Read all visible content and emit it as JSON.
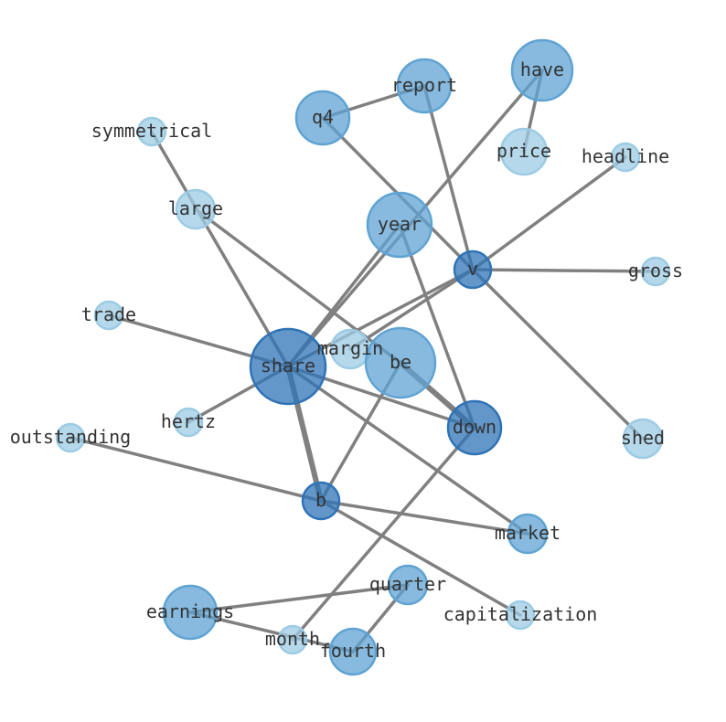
{
  "chart_data": {
    "type": "network",
    "edge_color": "#808080",
    "node_colors": {
      "dark": "#2f73b7",
      "mid": "#5fa3d3",
      "light": "#9ccbe4"
    },
    "nodes": [
      {
        "id": "have",
        "label": "have",
        "shade": "mid",
        "size": 33
      },
      {
        "id": "report",
        "label": "report",
        "shade": "mid",
        "size": 29
      },
      {
        "id": "q4",
        "label": "q4",
        "shade": "mid",
        "size": 29
      },
      {
        "id": "price",
        "label": "price",
        "shade": "light",
        "size": 25
      },
      {
        "id": "headline",
        "label": "headline",
        "shade": "light",
        "size": 15
      },
      {
        "id": "symmetrical",
        "label": "symmetrical",
        "shade": "light",
        "size": 15
      },
      {
        "id": "large",
        "label": "large",
        "shade": "light",
        "size": 21
      },
      {
        "id": "year",
        "label": "year",
        "shade": "mid",
        "size": 35
      },
      {
        "id": "v",
        "label": "v",
        "shade": "dark",
        "size": 20
      },
      {
        "id": "gross",
        "label": "gross",
        "shade": "light",
        "size": 15
      },
      {
        "id": "trade",
        "label": "trade",
        "shade": "light",
        "size": 15
      },
      {
        "id": "margin",
        "label": "margin",
        "shade": "light",
        "size": 21
      },
      {
        "id": "share",
        "label": "share",
        "shade": "dark",
        "size": 41
      },
      {
        "id": "be",
        "label": "be",
        "shade": "mid",
        "size": 38
      },
      {
        "id": "hertz",
        "label": "hertz",
        "shade": "light",
        "size": 15
      },
      {
        "id": "down",
        "label": "down",
        "shade": "dark",
        "size": 29
      },
      {
        "id": "outstanding",
        "label": "outstanding",
        "shade": "light",
        "size": 15
      },
      {
        "id": "shed",
        "label": "shed",
        "shade": "light",
        "size": 21
      },
      {
        "id": "b",
        "label": "b",
        "shade": "dark",
        "size": 20
      },
      {
        "id": "market",
        "label": "market",
        "shade": "mid",
        "size": 21
      },
      {
        "id": "quarter",
        "label": "quarter",
        "shade": "mid",
        "size": 21
      },
      {
        "id": "earnings",
        "label": "earnings",
        "shade": "mid",
        "size": 29
      },
      {
        "id": "capitalization",
        "label": "capitalization",
        "shade": "light",
        "size": 15
      },
      {
        "id": "month",
        "label": "month",
        "shade": "light",
        "size": 15
      },
      {
        "id": "fourth",
        "label": "fourth",
        "shade": "mid",
        "size": 25
      }
    ],
    "edges": [
      {
        "source": "have",
        "target": "price",
        "weight": 1
      },
      {
        "source": "have",
        "target": "share",
        "weight": 1
      },
      {
        "source": "report",
        "target": "q4",
        "weight": 1
      },
      {
        "source": "report",
        "target": "v",
        "weight": 1
      },
      {
        "source": "q4",
        "target": "v",
        "weight": 1
      },
      {
        "source": "headline",
        "target": "v",
        "weight": 1
      },
      {
        "source": "gross",
        "target": "v",
        "weight": 1
      },
      {
        "source": "shed",
        "target": "v",
        "weight": 1
      },
      {
        "source": "v",
        "target": "share",
        "weight": 1
      },
      {
        "source": "v",
        "target": "margin",
        "weight": 1
      },
      {
        "source": "symmetrical",
        "target": "share",
        "weight": 1
      },
      {
        "source": "large",
        "target": "be",
        "weight": 1
      },
      {
        "source": "year",
        "target": "share",
        "weight": 1
      },
      {
        "source": "year",
        "target": "down",
        "weight": 1
      },
      {
        "source": "trade",
        "target": "share",
        "weight": 1
      },
      {
        "source": "hertz",
        "target": "share",
        "weight": 1
      },
      {
        "source": "share",
        "target": "down",
        "weight": 1
      },
      {
        "source": "share",
        "target": "b",
        "weight": 2
      },
      {
        "source": "share",
        "target": "market",
        "weight": 1
      },
      {
        "source": "be",
        "target": "down",
        "weight": 2
      },
      {
        "source": "be",
        "target": "b",
        "weight": 1
      },
      {
        "source": "outstanding",
        "target": "b",
        "weight": 1
      },
      {
        "source": "b",
        "target": "market",
        "weight": 1
      },
      {
        "source": "b",
        "target": "capitalization",
        "weight": 1
      },
      {
        "source": "down",
        "target": "month",
        "weight": 1
      },
      {
        "source": "earnings",
        "target": "quarter",
        "weight": 1
      },
      {
        "source": "earnings",
        "target": "fourth",
        "weight": 1
      },
      {
        "source": "quarter",
        "target": "fourth",
        "weight": 1
      }
    ]
  }
}
